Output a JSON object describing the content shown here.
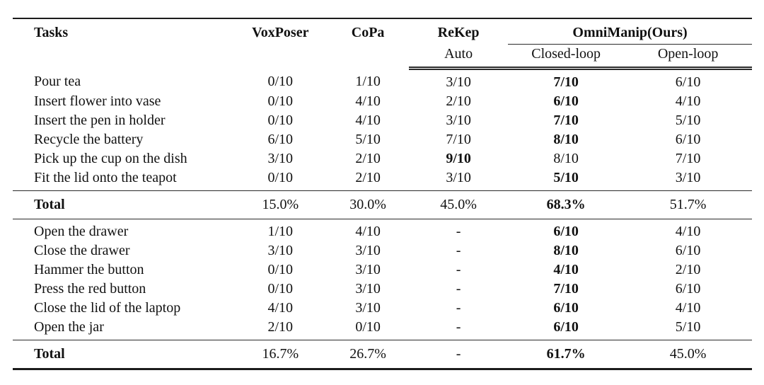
{
  "page": {
    "background_color": "#ffffff",
    "text_color": "#111111",
    "rule_color": "#1c1c1c"
  },
  "table": {
    "header": {
      "col_tasks": "Tasks",
      "col_voxposer": "VoxPoser",
      "col_copa": "CoPa",
      "col_rekep": "ReKep",
      "col_rekep_sub": "Auto",
      "col_ours_group": "OmniManip(Ours)",
      "col_ours_closed": "Closed-loop",
      "col_ours_open": "Open-loop"
    },
    "sections": [
      {
        "rows": [
          {
            "task": "Pour tea",
            "voxposer": "0/10",
            "copa": "1/10",
            "rekep": "3/10",
            "closed_loop": "7/10",
            "open_loop": "6/10",
            "best": "closed_loop"
          },
          {
            "task": "Insert flower into vase",
            "voxposer": "0/10",
            "copa": "4/10",
            "rekep": "2/10",
            "closed_loop": "6/10",
            "open_loop": "4/10",
            "best": "closed_loop"
          },
          {
            "task": "Insert the pen in holder",
            "voxposer": "0/10",
            "copa": "4/10",
            "rekep": "3/10",
            "closed_loop": "7/10",
            "open_loop": "5/10",
            "best": "closed_loop"
          },
          {
            "task": "Recycle the battery",
            "voxposer": "6/10",
            "copa": "5/10",
            "rekep": "7/10",
            "closed_loop": "8/10",
            "open_loop": "6/10",
            "best": "closed_loop"
          },
          {
            "task": "Pick up the cup on the dish",
            "voxposer": "3/10",
            "copa": "2/10",
            "rekep": "9/10",
            "closed_loop": "8/10",
            "open_loop": "7/10",
            "best": "rekep"
          },
          {
            "task": "Fit the lid onto the teapot",
            "voxposer": "0/10",
            "copa": "2/10",
            "rekep": "3/10",
            "closed_loop": "5/10",
            "open_loop": "3/10",
            "best": "closed_loop"
          }
        ],
        "total": {
          "task": "Total",
          "voxposer": "15.0%",
          "copa": "30.0%",
          "rekep": "45.0%",
          "closed_loop": "68.3%",
          "open_loop": "51.7%",
          "best": "closed_loop"
        }
      },
      {
        "rows": [
          {
            "task": "Open the drawer",
            "voxposer": "1/10",
            "copa": "4/10",
            "rekep": "-",
            "closed_loop": "6/10",
            "open_loop": "4/10",
            "best": "closed_loop"
          },
          {
            "task": "Close the drawer",
            "voxposer": "3/10",
            "copa": "3/10",
            "rekep": "-",
            "closed_loop": "8/10",
            "open_loop": "6/10",
            "best": "closed_loop"
          },
          {
            "task": "Hammer the button",
            "voxposer": "0/10",
            "copa": "3/10",
            "rekep": "-",
            "closed_loop": "4/10",
            "open_loop": "2/10",
            "best": "closed_loop"
          },
          {
            "task": "Press the red button",
            "voxposer": "0/10",
            "copa": "3/10",
            "rekep": "-",
            "closed_loop": "7/10",
            "open_loop": "6/10",
            "best": "closed_loop"
          },
          {
            "task": "Close the lid of the laptop",
            "voxposer": "4/10",
            "copa": "3/10",
            "rekep": "-",
            "closed_loop": "6/10",
            "open_loop": "4/10",
            "best": "closed_loop"
          },
          {
            "task": "Open the jar",
            "voxposer": "2/10",
            "copa": "0/10",
            "rekep": "-",
            "closed_loop": "6/10",
            "open_loop": "5/10",
            "best": "closed_loop"
          }
        ],
        "total": {
          "task": "Total",
          "voxposer": "16.7%",
          "copa": "26.7%",
          "rekep": "-",
          "closed_loop": "61.7%",
          "open_loop": "45.0%",
          "best": "closed_loop"
        }
      }
    ]
  }
}
